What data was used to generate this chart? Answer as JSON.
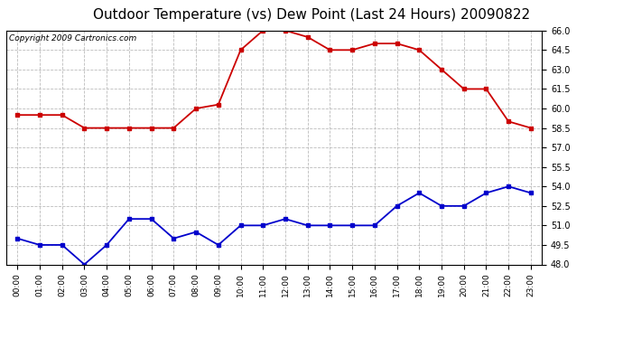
{
  "title": "Outdoor Temperature (vs) Dew Point (Last 24 Hours) 20090822",
  "copyright": "Copyright 2009 Cartronics.com",
  "hours": [
    "00:00",
    "01:00",
    "02:00",
    "03:00",
    "04:00",
    "05:00",
    "06:00",
    "07:00",
    "08:00",
    "09:00",
    "10:00",
    "11:00",
    "12:00",
    "13:00",
    "14:00",
    "15:00",
    "16:00",
    "17:00",
    "18:00",
    "19:00",
    "20:00",
    "21:00",
    "22:00",
    "23:00"
  ],
  "temp": [
    59.5,
    59.5,
    59.5,
    58.5,
    58.5,
    58.5,
    58.5,
    58.5,
    60.0,
    60.3,
    64.5,
    66.0,
    66.0,
    65.5,
    64.5,
    64.5,
    65.0,
    65.0,
    64.5,
    63.0,
    61.5,
    61.5,
    59.0,
    58.5
  ],
  "dew": [
    50.0,
    49.5,
    49.5,
    48.0,
    49.5,
    51.5,
    51.5,
    50.0,
    50.5,
    49.5,
    51.0,
    51.0,
    51.5,
    51.0,
    51.0,
    51.0,
    51.0,
    52.5,
    53.5,
    52.5,
    52.5,
    53.5,
    54.0,
    53.5
  ],
  "temp_color": "#cc0000",
  "dew_color": "#0000cc",
  "ylim_min": 48.0,
  "ylim_max": 66.0,
  "ytick_step": 1.5,
  "bg_color": "#ffffff",
  "plot_bg_color": "#ffffff",
  "grid_color": "#bbbbbb",
  "title_fontsize": 11,
  "copyright_fontsize": 6.5,
  "marker": "s",
  "marker_size": 3.5,
  "linewidth": 1.3
}
